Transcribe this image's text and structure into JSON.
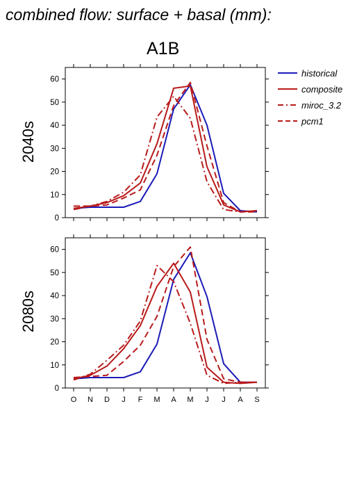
{
  "title": "combined flow: surface + basal (mm):",
  "scenario": "A1B",
  "colors": {
    "historical": "#1a1ab8",
    "scenario": "#b81a1a",
    "axis": "#000000"
  },
  "legend": [
    {
      "name": "historical",
      "color": "#1a1ab8",
      "dash": "solid"
    },
    {
      "name": "composite",
      "color": "#b81a1a",
      "dash": "solid"
    },
    {
      "name": "miroc_3.2",
      "color": "#b81a1a",
      "dash": "dashdot"
    },
    {
      "name": "pcm1",
      "color": "#b81a1a",
      "dash": "dash"
    }
  ],
  "chart_data": [
    {
      "type": "line",
      "label": "2040s",
      "categories": [
        "O",
        "N",
        "D",
        "J",
        "F",
        "M",
        "A",
        "M",
        "J",
        "J",
        "A",
        "S"
      ],
      "ylim": [
        0,
        65
      ],
      "yticks": [
        0,
        10,
        20,
        30,
        40,
        50,
        60
      ],
      "series": [
        {
          "name": "historical",
          "values": [
            4,
            4.5,
            4.5,
            4.5,
            7,
            19,
            47,
            57.5,
            40,
            10.5,
            3,
            2.5
          ]
        },
        {
          "name": "composite",
          "values": [
            4,
            5,
            6.5,
            9.5,
            15,
            32,
            56,
            57,
            22,
            5.5,
            2.5,
            3
          ]
        },
        {
          "name": "miroc_3.2",
          "values": [
            3.5,
            5,
            7,
            11,
            18.5,
            43.5,
            52.5,
            43,
            15.5,
            3.5,
            2.5,
            3
          ]
        },
        {
          "name": "pcm1",
          "values": [
            5,
            5,
            5.5,
            8.5,
            12,
            27,
            48.5,
            58.5,
            31,
            6.5,
            2.5,
            2.5
          ]
        }
      ]
    },
    {
      "type": "line",
      "label": "2080s",
      "categories": [
        "O",
        "N",
        "D",
        "J",
        "F",
        "M",
        "A",
        "M",
        "J",
        "J",
        "A",
        "S"
      ],
      "ylim": [
        0,
        65
      ],
      "yticks": [
        0,
        10,
        20,
        30,
        40,
        50,
        60
      ],
      "series": [
        {
          "name": "historical",
          "values": [
            4,
            4.5,
            4.5,
            4.5,
            7,
            19,
            47,
            58.5,
            39.5,
            10.5,
            2.5,
            2.5
          ]
        },
        {
          "name": "composite",
          "values": [
            4,
            5.5,
            9.5,
            17,
            27,
            44,
            54,
            41.5,
            9,
            2.5,
            2,
            2.5
          ]
        },
        {
          "name": "miroc_3.2",
          "values": [
            3.5,
            6,
            12,
            18.5,
            29,
            53,
            46,
            28,
            5.5,
            2,
            2.5,
            2.5
          ]
        },
        {
          "name": "pcm1",
          "values": [
            4.5,
            5,
            5.5,
            11.5,
            18.5,
            31,
            52.5,
            61,
            21,
            4,
            2.5,
            2.5
          ]
        }
      ]
    }
  ]
}
